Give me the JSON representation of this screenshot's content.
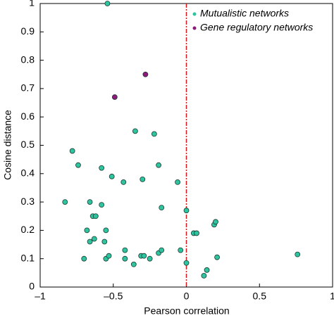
{
  "chart_data": {
    "type": "scatter",
    "xlabel": "Pearson correlation",
    "ylabel": "Cosine distance",
    "xlim": [
      -1,
      1
    ],
    "ylim": [
      0,
      1
    ],
    "xticks": [
      {
        "value": -1,
        "label": "–1"
      },
      {
        "value": -0.5,
        "label": "–0.5"
      },
      0,
      0.5,
      1
    ],
    "yticks": [
      0,
      0.1,
      0.2,
      0.3,
      0.4,
      0.5,
      0.6,
      0.7,
      0.8,
      0.9,
      1
    ],
    "reference_line": {
      "x": 0,
      "color": "#d7191c"
    },
    "legend": "upper right",
    "series": [
      {
        "name": "Mutualistic networks",
        "color": "#2ec4a0",
        "x": [
          -0.54,
          -0.78,
          -0.74,
          -0.83,
          -0.66,
          -0.58,
          -0.64,
          -0.62,
          -0.68,
          -0.55,
          -0.66,
          -0.63,
          -0.56,
          -0.7,
          -0.55,
          -0.53,
          -0.58,
          -0.51,
          -0.43,
          -0.35,
          -0.22,
          -0.3,
          -0.19,
          -0.06,
          -0.17,
          0.0,
          -0.42,
          -0.42,
          -0.36,
          -0.31,
          -0.29,
          -0.25,
          -0.19,
          -0.17,
          -0.04,
          0.0,
          0.05,
          0.07,
          0.19,
          0.2,
          0.21,
          0.14,
          0.12,
          0.76
        ],
        "y": [
          1.0,
          0.48,
          0.43,
          0.3,
          0.3,
          0.29,
          0.25,
          0.25,
          0.2,
          0.2,
          0.16,
          0.17,
          0.16,
          0.1,
          0.1,
          0.11,
          0.42,
          0.39,
          0.37,
          0.55,
          0.54,
          0.38,
          0.43,
          0.37,
          0.28,
          0.27,
          0.13,
          0.1,
          0.08,
          0.11,
          0.11,
          0.1,
          0.12,
          0.13,
          0.13,
          0.085,
          0.19,
          0.19,
          0.22,
          0.23,
          0.105,
          0.06,
          0.04,
          0.115
        ]
      },
      {
        "name": "Gene regulatory networks",
        "color": "#8b1a7a",
        "x": [
          -0.49,
          -0.28
        ],
        "y": [
          0.67,
          0.75
        ]
      }
    ]
  }
}
